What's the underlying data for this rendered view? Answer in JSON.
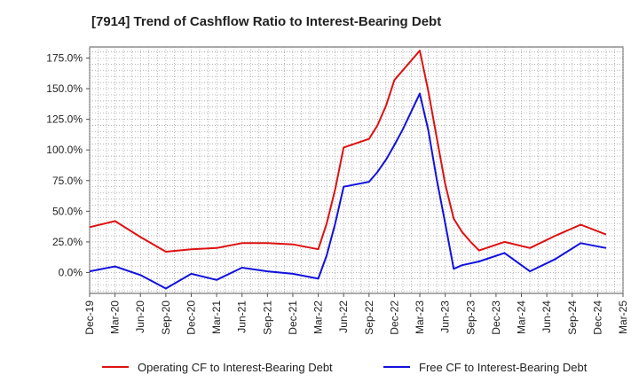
{
  "chart_data": {
    "type": "line",
    "title": "[7914]  Trend of Cashflow Ratio to Interest-Bearing Debt",
    "xlabel": "",
    "ylabel": "",
    "x_tick_labels": [
      "Dec-19",
      "Mar-20",
      "Jun-20",
      "Sep-20",
      "Dec-20",
      "Mar-21",
      "Jun-21",
      "Sep-21",
      "Dec-21",
      "Mar-22",
      "Jun-22",
      "Sep-22",
      "Dec-22",
      "Mar-23",
      "Jun-23",
      "Sep-23",
      "Dec-23",
      "Mar-24",
      "Jun-24",
      "Sep-24",
      "Dec-24",
      "Mar-25"
    ],
    "y_tick_labels": [
      "0.0%",
      "25.0%",
      "50.0%",
      "75.0%",
      "100.0%",
      "125.0%",
      "150.0%",
      "175.0%"
    ],
    "y_ticks": [
      0,
      25,
      50,
      75,
      100,
      125,
      150,
      175
    ],
    "ylim": [
      -17,
      184
    ],
    "grid": true,
    "legend_position": "bottom",
    "x": [
      0,
      1,
      2,
      3,
      4,
      5,
      6,
      7,
      8,
      9,
      10,
      11,
      12,
      13,
      14,
      15,
      16,
      17,
      18,
      19,
      20,
      21,
      22,
      23,
      24,
      25,
      26,
      27,
      28,
      29,
      30,
      31,
      32,
      33,
      34,
      35,
      36,
      37,
      38,
      39,
      40,
      41,
      42,
      43,
      44,
      45,
      46,
      47,
      48,
      49,
      50,
      51,
      52,
      53,
      54,
      55,
      56,
      57,
      58,
      59,
      60,
      61,
      62,
      63
    ],
    "series": [
      {
        "name": "Operating CF to Interest-Bearing Debt",
        "color": "#dd1111",
        "points": [
          [
            0,
            37
          ],
          [
            3,
            42
          ],
          [
            6,
            29
          ],
          [
            9,
            17
          ],
          [
            12,
            19
          ],
          [
            15,
            20
          ],
          [
            18,
            24
          ],
          [
            21,
            24
          ],
          [
            24,
            23
          ],
          [
            27,
            19
          ],
          [
            28,
            40
          ],
          [
            29,
            68
          ],
          [
            30,
            102
          ],
          [
            33,
            109
          ],
          [
            34,
            120
          ],
          [
            35,
            136
          ],
          [
            36,
            157
          ],
          [
            39,
            181
          ],
          [
            40,
            148
          ],
          [
            41,
            110
          ],
          [
            42,
            72
          ],
          [
            43,
            44
          ],
          [
            44,
            33
          ],
          [
            45,
            25
          ],
          [
            46,
            18
          ],
          [
            49,
            25
          ],
          [
            52,
            20
          ],
          [
            55,
            30
          ],
          [
            58,
            39
          ],
          [
            61,
            31
          ]
        ]
      },
      {
        "name": "Free CF to Interest-Bearing Debt",
        "color": "#1111dd",
        "points": [
          [
            0,
            1
          ],
          [
            3,
            5
          ],
          [
            6,
            -2
          ],
          [
            9,
            -13
          ],
          [
            12,
            -1
          ],
          [
            15,
            -6
          ],
          [
            18,
            4
          ],
          [
            21,
            1
          ],
          [
            24,
            -1
          ],
          [
            27,
            -5
          ],
          [
            28,
            14
          ],
          [
            29,
            40
          ],
          [
            30,
            70
          ],
          [
            33,
            74
          ],
          [
            34,
            82
          ],
          [
            35,
            92
          ],
          [
            36,
            104
          ],
          [
            37,
            117
          ],
          [
            39,
            146
          ],
          [
            40,
            116
          ],
          [
            41,
            76
          ],
          [
            42,
            40
          ],
          [
            43,
            3
          ],
          [
            44,
            6
          ],
          [
            46,
            9
          ],
          [
            49,
            16
          ],
          [
            52,
            1
          ],
          [
            55,
            11
          ],
          [
            58,
            24
          ],
          [
            61,
            20
          ]
        ]
      }
    ]
  }
}
